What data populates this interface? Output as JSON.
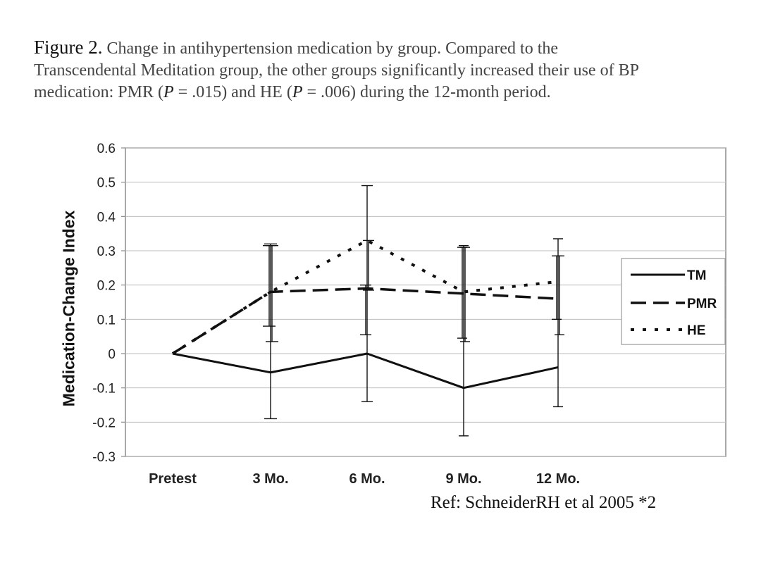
{
  "caption": {
    "figure_label": "Figure 2.",
    "text_line1": "Change in antihypertension medication by group. Compared to the",
    "text_line2": "Transcendental Meditation group, the other groups significantly increased their use of BP",
    "text_line3_a": "medication: PMR (",
    "p_symbol": "P",
    "text_line3_b": " = .015) and HE (",
    "text_line3_c": " = .006) during the 12-month period."
  },
  "reference": "Ref: SchneiderRH et al 2005 *2",
  "chart_data": {
    "type": "line",
    "title": "",
    "xlabel": "",
    "ylabel": "Medication-Change Index",
    "categories": [
      "Pretest",
      "3 Mo.",
      "6 Mo.",
      "9 Mo.",
      "12 Mo."
    ],
    "ylim": [
      -0.3,
      0.6
    ],
    "yticks": [
      "0.6",
      "0.5",
      "0.4",
      "0.3",
      "0.2",
      "0.1",
      "0",
      "-0.1",
      "-0.2",
      "-0.3"
    ],
    "ytick_values": [
      0.6,
      0.5,
      0.4,
      0.3,
      0.2,
      0.1,
      0,
      -0.1,
      -0.2,
      -0.3
    ],
    "grid": true,
    "legend_position": "right",
    "series": [
      {
        "name": "TM",
        "style": "solid",
        "values": [
          0,
          -0.055,
          0,
          -0.1,
          -0.04
        ],
        "error_low": [
          null,
          -0.19,
          -0.14,
          -0.24,
          -0.155
        ],
        "error_high": [
          null,
          0.32,
          0.49,
          0.315,
          0.335
        ]
      },
      {
        "name": "PMR",
        "style": "dashed",
        "values": [
          0,
          0.18,
          0.19,
          0.175,
          0.16
        ],
        "error_low": [
          null,
          0.08,
          0.055,
          0.045,
          0.1
        ],
        "error_high": [
          null,
          0.315,
          0.2,
          0.31,
          0.285
        ]
      },
      {
        "name": "HE",
        "style": "dotted",
        "values": [
          0,
          0.18,
          0.33,
          0.18,
          0.21
        ],
        "error_low": [
          null,
          0.035,
          0.185,
          0.035,
          0.055
        ],
        "error_high": [
          null,
          0.315,
          0.33,
          0.31,
          0.285
        ]
      }
    ]
  },
  "colors": {
    "line": "#111111",
    "grid": "#bdbdbd",
    "frame": "#8c8c8c",
    "legend_border": "#9a9a9a"
  }
}
